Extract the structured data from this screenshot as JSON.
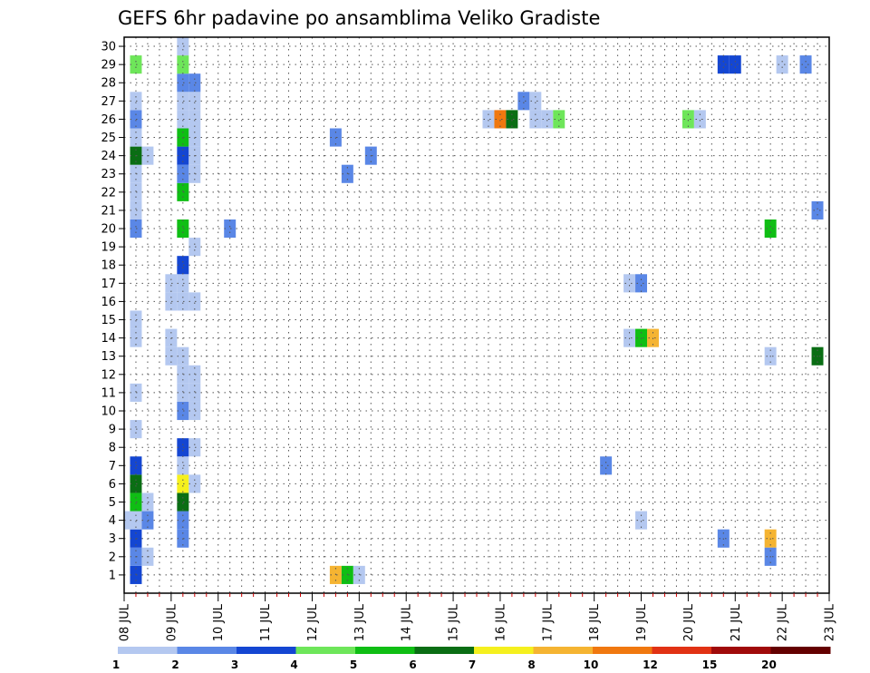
{
  "chart_data": {
    "type": "heatmap",
    "title": "GEFS 6hr padavine po ansamblima Veliko Gradiste",
    "xlabel": "",
    "ylabel": "",
    "x_ticks": [
      "08 JUL",
      "09 JUL",
      "10 JUL",
      "11 JUL",
      "12 JUL",
      "13 JUL",
      "14 JUL",
      "15 JUL",
      "16 JUL",
      "17 JUL",
      "18 JUL",
      "19 JUL",
      "20 JUL",
      "21 JUL",
      "22 JUL",
      "23 JUL"
    ],
    "y_ticks": [
      "1",
      "2",
      "3",
      "4",
      "5",
      "6",
      "7",
      "8",
      "9",
      "10",
      "11",
      "12",
      "13",
      "14",
      "15",
      "16",
      "17",
      "18",
      "19",
      "20",
      "21",
      "22",
      "23",
      "24",
      "25",
      "26",
      "27",
      "28",
      "29",
      "30"
    ],
    "y_range": [
      0,
      30
    ],
    "time_step": "6hr",
    "grid": true,
    "colorbar": {
      "labels": [
        "1",
        "2",
        "3",
        "4",
        "5",
        "6",
        "7",
        "8",
        "10",
        "12",
        "15",
        "20"
      ],
      "bounds": [
        1,
        2,
        3,
        4,
        5,
        6,
        7,
        8,
        10,
        12,
        15,
        20
      ],
      "colors": [
        "#b4c8f0",
        "#5a87e6",
        "#1446d2",
        "#6ee65a",
        "#0fbe14",
        "#0a6e14",
        "#f5f01e",
        "#f5b432",
        "#f0780f",
        "#e13214",
        "#a00a0a",
        "#640000"
      ]
    },
    "cells": [
      {
        "t": 1,
        "m": 0,
        "v": 3.5
      },
      {
        "t": 1,
        "m": 1,
        "v": 2.5
      },
      {
        "t": 1,
        "m": 2,
        "v": 3.5
      },
      {
        "t": 1,
        "m": 3,
        "v": 1.5
      },
      {
        "t": 1,
        "m": 4,
        "v": 5.5
      },
      {
        "t": 1,
        "m": 5,
        "v": 6.5
      },
      {
        "t": 1,
        "m": 6,
        "v": 3.5
      },
      {
        "t": 1,
        "m": 8,
        "v": 1.5
      },
      {
        "t": 1,
        "m": 10,
        "v": 1.5
      },
      {
        "t": 1,
        "m": 13,
        "v": 1.5
      },
      {
        "t": 1,
        "m": 14,
        "v": 1.5
      },
      {
        "t": 1,
        "m": 19,
        "v": 2.5
      },
      {
        "t": 1,
        "m": 20,
        "v": 1.5
      },
      {
        "t": 1,
        "m": 21,
        "v": 1.5
      },
      {
        "t": 1,
        "m": 22,
        "v": 1.5
      },
      {
        "t": 1,
        "m": 23,
        "v": 6.5
      },
      {
        "t": 1,
        "m": 24,
        "v": 1.5
      },
      {
        "t": 1,
        "m": 25,
        "v": 2.5
      },
      {
        "t": 1,
        "m": 26,
        "v": 1.5
      },
      {
        "t": 1,
        "m": 28,
        "v": 4.5
      },
      {
        "t": 0,
        "m": 3,
        "v": 1.5
      },
      {
        "t": 2,
        "m": 1,
        "v": 1.5
      },
      {
        "t": 2,
        "m": 3,
        "v": 2.5
      },
      {
        "t": 2,
        "m": 4,
        "v": 1.5
      },
      {
        "t": 2,
        "m": 23,
        "v": 1.5
      },
      {
        "t": 4,
        "m": 12,
        "v": 1.5
      },
      {
        "t": 4,
        "m": 13,
        "v": 1.5
      },
      {
        "t": 5,
        "m": 2,
        "v": 2.5
      },
      {
        "t": 5,
        "m": 3,
        "v": 2.5
      },
      {
        "t": 5,
        "m": 4,
        "v": 6.5
      },
      {
        "t": 5,
        "m": 5,
        "v": 7.5
      },
      {
        "t": 5,
        "m": 6,
        "v": 1.5
      },
      {
        "t": 5,
        "m": 7,
        "v": 3.5
      },
      {
        "t": 5,
        "m": 9,
        "v": 2.5
      },
      {
        "t": 5,
        "m": 10,
        "v": 1.5
      },
      {
        "t": 5,
        "m": 11,
        "v": 1.5
      },
      {
        "t": 5,
        "m": 12,
        "v": 1.5
      },
      {
        "t": 5,
        "m": 15,
        "v": 1.5
      },
      {
        "t": 5,
        "m": 16,
        "v": 1.5
      },
      {
        "t": 5,
        "m": 17,
        "v": 3.5
      },
      {
        "t": 5,
        "m": 19,
        "v": 5.5
      },
      {
        "t": 5,
        "m": 21,
        "v": 5.5
      },
      {
        "t": 5,
        "m": 22,
        "v": 2.5
      },
      {
        "t": 5,
        "m": 23,
        "v": 3.5
      },
      {
        "t": 5,
        "m": 24,
        "v": 5.5
      },
      {
        "t": 5,
        "m": 25,
        "v": 1.5
      },
      {
        "t": 5,
        "m": 26,
        "v": 1.5
      },
      {
        "t": 5,
        "m": 27,
        "v": 2.5
      },
      {
        "t": 5,
        "m": 28,
        "v": 4.5
      },
      {
        "t": 5,
        "m": 29,
        "v": 1.5
      },
      {
        "t": 4,
        "m": 15,
        "v": 1.5
      },
      {
        "t": 4,
        "m": 16,
        "v": 1.5
      },
      {
        "t": 6,
        "m": 5,
        "v": 1.5
      },
      {
        "t": 6,
        "m": 7,
        "v": 1.5
      },
      {
        "t": 6,
        "m": 9,
        "v": 1.5
      },
      {
        "t": 6,
        "m": 10,
        "v": 1.5
      },
      {
        "t": 6,
        "m": 11,
        "v": 1.5
      },
      {
        "t": 6,
        "m": 15,
        "v": 1.5
      },
      {
        "t": 6,
        "m": 18,
        "v": 1.5
      },
      {
        "t": 6,
        "m": 22,
        "v": 1.5
      },
      {
        "t": 6,
        "m": 23,
        "v": 1.5
      },
      {
        "t": 6,
        "m": 24,
        "v": 1.5
      },
      {
        "t": 6,
        "m": 25,
        "v": 1.5
      },
      {
        "t": 6,
        "m": 26,
        "v": 1.5
      },
      {
        "t": 6,
        "m": 27,
        "v": 2.5
      },
      {
        "t": 9,
        "m": 19,
        "v": 2.5
      },
      {
        "t": 18,
        "m": 0,
        "v": 9.0
      },
      {
        "t": 19,
        "m": 0,
        "v": 5.5
      },
      {
        "t": 20,
        "m": 0,
        "v": 1.5
      },
      {
        "t": 18,
        "m": 24,
        "v": 2.5
      },
      {
        "t": 19,
        "m": 22,
        "v": 2.5
      },
      {
        "t": 21,
        "m": 23,
        "v": 2.5
      },
      {
        "t": 31,
        "m": 25,
        "v": 1.5
      },
      {
        "t": 32,
        "m": 25,
        "v": 10.5
      },
      {
        "t": 33,
        "m": 25,
        "v": 6.5
      },
      {
        "t": 34,
        "m": 26,
        "v": 2.5
      },
      {
        "t": 36,
        "m": 25,
        "v": 1.5
      },
      {
        "t": 37,
        "m": 25,
        "v": 4.5
      },
      {
        "t": 35,
        "m": 25,
        "v": 1.5
      },
      {
        "t": 35,
        "m": 26,
        "v": 1.5
      },
      {
        "t": 41,
        "m": 6,
        "v": 2.5
      },
      {
        "t": 43,
        "m": 13,
        "v": 1.5
      },
      {
        "t": 43,
        "m": 16,
        "v": 1.5
      },
      {
        "t": 44,
        "m": 16,
        "v": 2.5
      },
      {
        "t": 44,
        "m": 13,
        "v": 5.5
      },
      {
        "t": 45,
        "m": 13,
        "v": 9.0
      },
      {
        "t": 44,
        "m": 3,
        "v": 1.5
      },
      {
        "t": 48,
        "m": 25,
        "v": 4.5
      },
      {
        "t": 49,
        "m": 25,
        "v": 1.5
      },
      {
        "t": 51,
        "m": 28,
        "v": 3.5
      },
      {
        "t": 52,
        "m": 28,
        "v": 3.5
      },
      {
        "t": 51,
        "m": 2,
        "v": 2.5
      },
      {
        "t": 55,
        "m": 19,
        "v": 5.5
      },
      {
        "t": 55,
        "m": 12,
        "v": 1.5
      },
      {
        "t": 55,
        "m": 2,
        "v": 9.0
      },
      {
        "t": 55,
        "m": 1,
        "v": 2.5
      },
      {
        "t": 56,
        "m": 28,
        "v": 1.5
      },
      {
        "t": 58,
        "m": 28,
        "v": 2.5
      },
      {
        "t": 59,
        "m": 20,
        "v": 2.5
      },
      {
        "t": 59,
        "m": 12,
        "v": 6.5
      }
    ]
  }
}
